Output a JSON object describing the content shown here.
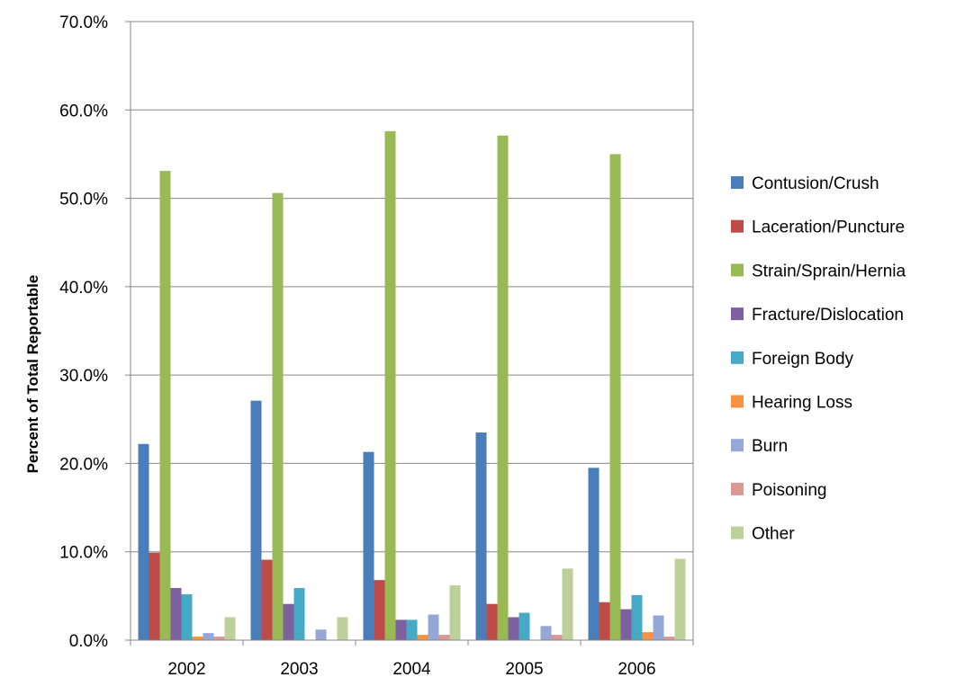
{
  "chart_data": {
    "type": "bar",
    "ylabel": "Percent of Total Reportable",
    "ylim": [
      0,
      70
    ],
    "y_ticks": [
      "0.0%",
      "10.0%",
      "20.0%",
      "30.0%",
      "40.0%",
      "50.0%",
      "60.0%",
      "70.0%"
    ],
    "grid": true,
    "legend_position": "right",
    "categories": [
      "2002",
      "2003",
      "2004",
      "2005",
      "2006"
    ],
    "series": [
      {
        "name": "Contusion/Crush",
        "color": "#4a7ebb",
        "values": [
          22.2,
          27.1,
          21.3,
          23.5,
          19.5
        ]
      },
      {
        "name": "Laceration/Puncture",
        "color": "#be4b48",
        "values": [
          9.9,
          9.1,
          6.8,
          4.1,
          4.3
        ]
      },
      {
        "name": "Strain/Sprain/Hernia",
        "color": "#98b954",
        "values": [
          53.1,
          50.6,
          57.6,
          57.1,
          55.0
        ]
      },
      {
        "name": "Fracture/Dislocation",
        "color": "#7d60a0",
        "values": [
          5.9,
          4.1,
          2.3,
          2.6,
          3.5
        ]
      },
      {
        "name": "Foreign Body",
        "color": "#46aac5",
        "values": [
          5.2,
          5.9,
          2.3,
          3.1,
          5.1
        ]
      },
      {
        "name": "Hearing Loss",
        "color": "#f69240",
        "values": [
          0.4,
          0.0,
          0.6,
          0.0,
          0.9
        ]
      },
      {
        "name": "Burn",
        "color": "#95a7d6",
        "values": [
          0.8,
          1.2,
          2.9,
          1.6,
          2.8
        ]
      },
      {
        "name": "Poisoning",
        "color": "#d99795",
        "values": [
          0.4,
          0.0,
          0.6,
          0.6,
          0.4
        ]
      },
      {
        "name": "Other",
        "color": "#bdd09a",
        "values": [
          2.6,
          2.6,
          6.2,
          8.1,
          9.2
        ]
      }
    ]
  }
}
